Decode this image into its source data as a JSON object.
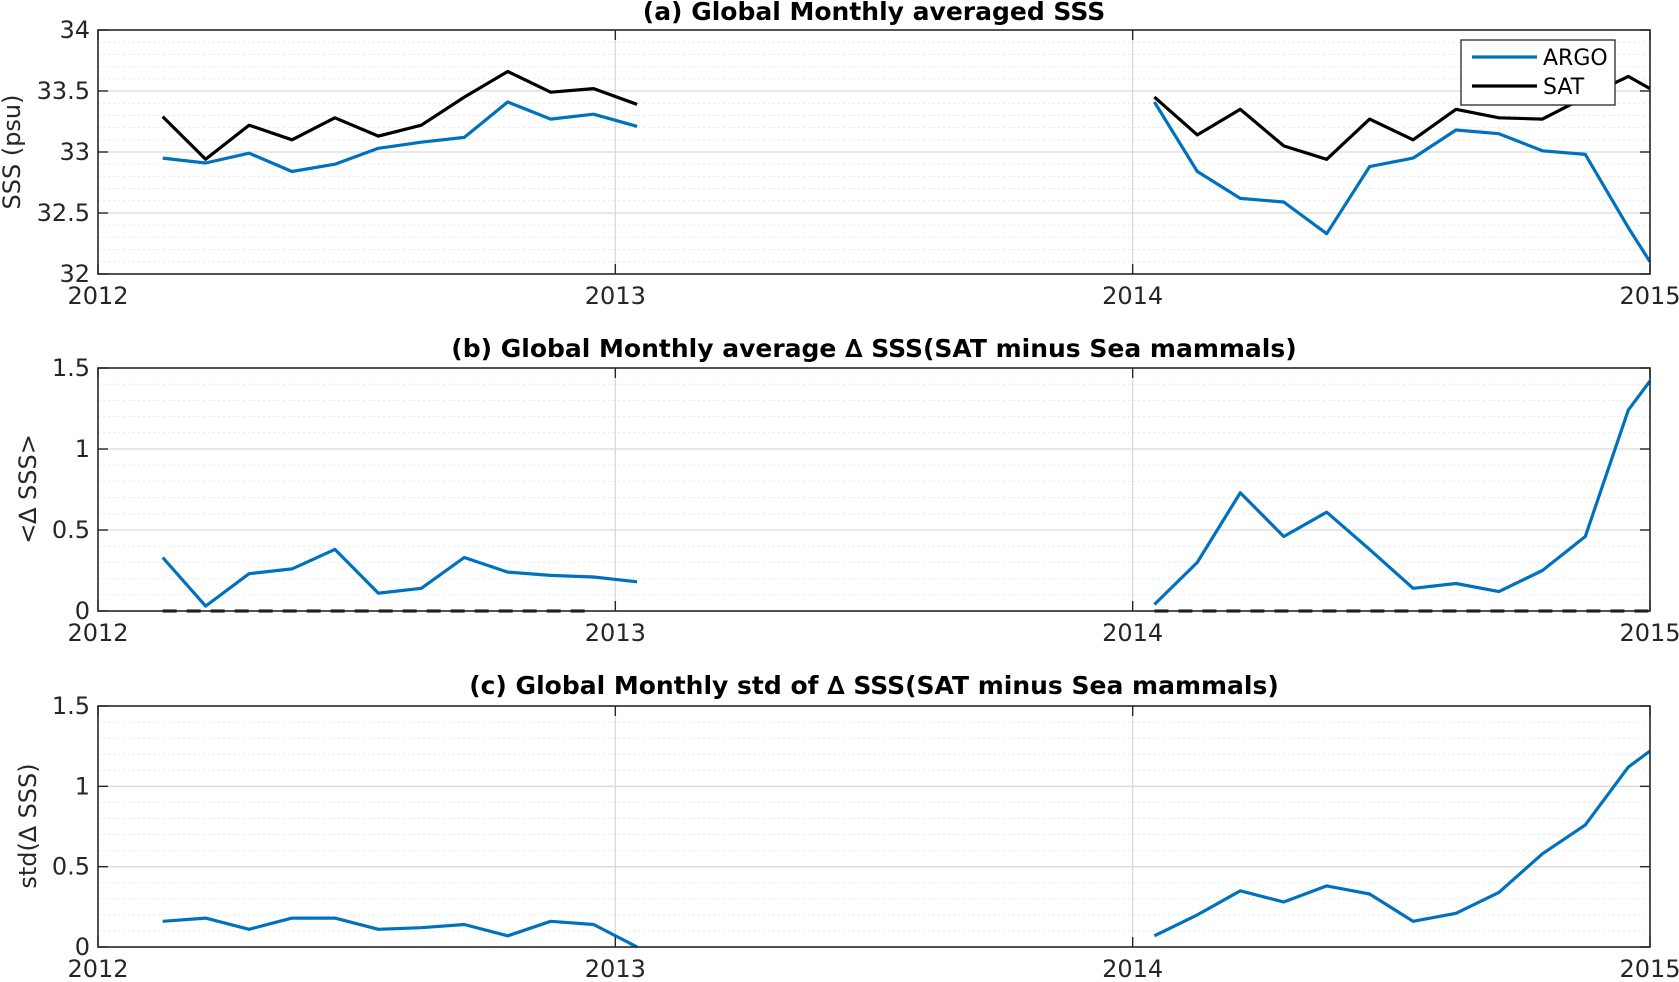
{
  "colors": {
    "argo": "#0072BD",
    "sat": "#000000",
    "zero_line": "#000000"
  },
  "chart_data": [
    {
      "type": "line",
      "title": "(a) Global Monthly averaged SSS",
      "ylabel": "SSS (psu)",
      "xlim": [
        2012,
        2015
      ],
      "ylim": [
        32,
        34
      ],
      "xticks": [
        2012,
        2013,
        2014,
        2015
      ],
      "xtick_labels": [
        "2012",
        "2013",
        "2014",
        "2015"
      ],
      "yticks": [
        32,
        32.5,
        33,
        33.5,
        34
      ],
      "ytick_labels": [
        "32",
        "32.5",
        "33",
        "33.5",
        "34"
      ],
      "minor_y_step": 0.1,
      "grid": true,
      "legend": {
        "placement": "top-right",
        "entries": [
          "ARGO",
          "SAT"
        ]
      },
      "series": [
        {
          "name": "ARGO",
          "color": "#0072BD",
          "segments": [
            {
              "x": [
                2012.125,
                2012.208,
                2012.292,
                2012.375,
                2012.458,
                2012.542,
                2012.625,
                2012.708,
                2012.792,
                2012.875,
                2012.958,
                2013.042
              ],
              "y": [
                32.95,
                32.91,
                32.99,
                32.84,
                32.9,
                33.03,
                33.08,
                33.12,
                33.41,
                33.27,
                33.31,
                33.21
              ]
            },
            {
              "x": [
                2014.042,
                2014.125,
                2014.208,
                2014.292,
                2014.375,
                2014.458,
                2014.542,
                2014.625,
                2014.708,
                2014.792,
                2014.875,
                2014.958,
                2015.0
              ],
              "y": [
                33.41,
                32.84,
                32.62,
                32.59,
                32.33,
                32.88,
                32.95,
                33.18,
                33.15,
                33.01,
                32.98,
                32.38,
                32.1
              ]
            }
          ]
        },
        {
          "name": "SAT",
          "color": "#000000",
          "segments": [
            {
              "x": [
                2012.125,
                2012.208,
                2012.292,
                2012.375,
                2012.458,
                2012.542,
                2012.625,
                2012.708,
                2012.792,
                2012.875,
                2012.958,
                2013.042
              ],
              "y": [
                33.29,
                32.94,
                33.22,
                33.1,
                33.28,
                33.13,
                33.22,
                33.45,
                33.66,
                33.49,
                33.52,
                33.39
              ]
            },
            {
              "x": [
                2014.042,
                2014.125,
                2014.208,
                2014.292,
                2014.375,
                2014.458,
                2014.542,
                2014.625,
                2014.708,
                2014.792,
                2014.875,
                2014.958,
                2015.0
              ],
              "y": [
                33.45,
                33.14,
                33.35,
                33.05,
                32.94,
                33.27,
                33.1,
                33.35,
                33.28,
                33.27,
                33.45,
                33.62,
                33.52
              ]
            }
          ]
        }
      ]
    },
    {
      "type": "line",
      "title": "(b) Global Monthly average ∆ SSS(SAT minus Sea mammals)",
      "ylabel": "<∆ SSS>",
      "xlim": [
        2012,
        2015
      ],
      "ylim": [
        0,
        1.5
      ],
      "xticks": [
        2012,
        2013,
        2014,
        2015
      ],
      "xtick_labels": [
        "2012",
        "2013",
        "2014",
        "2015"
      ],
      "yticks": [
        0,
        0.5,
        1,
        1.5
      ],
      "ytick_labels": [
        "0",
        "0.5",
        "1",
        "1.5"
      ],
      "minor_y_step": 0.1,
      "grid": true,
      "zero_line": {
        "style": "dashed",
        "segments": [
          [
            2012.125,
            2012.958
          ],
          [
            2014.042,
            2015.0
          ]
        ]
      },
      "series": [
        {
          "color": "#0072BD",
          "segments": [
            {
              "x": [
                2012.125,
                2012.208,
                2012.292,
                2012.375,
                2012.458,
                2012.542,
                2012.625,
                2012.708,
                2012.792,
                2012.875,
                2012.958,
                2013.042
              ],
              "y": [
                0.33,
                0.03,
                0.23,
                0.26,
                0.38,
                0.11,
                0.14,
                0.33,
                0.24,
                0.22,
                0.21,
                0.18
              ]
            },
            {
              "x": [
                2014.042,
                2014.125,
                2014.208,
                2014.292,
                2014.375,
                2014.458,
                2014.542,
                2014.625,
                2014.708,
                2014.792,
                2014.875,
                2014.958,
                2015.0
              ],
              "y": [
                0.04,
                0.3,
                0.73,
                0.46,
                0.61,
                0.38,
                0.14,
                0.17,
                0.12,
                0.25,
                0.46,
                1.24,
                1.42
              ]
            }
          ]
        }
      ]
    },
    {
      "type": "line",
      "title": "(c) Global Monthly std of ∆ SSS(SAT minus Sea mammals)",
      "ylabel": "std(∆ SSS)",
      "xlim": [
        2012,
        2015
      ],
      "ylim": [
        0,
        1.5
      ],
      "xticks": [
        2012,
        2013,
        2014,
        2015
      ],
      "xtick_labels": [
        "2012",
        "2013",
        "2014",
        "2015"
      ],
      "yticks": [
        0,
        0.5,
        1,
        1.5
      ],
      "ytick_labels": [
        "0",
        "0.5",
        "1",
        "1.5"
      ],
      "minor_y_step": 0.1,
      "grid": true,
      "series": [
        {
          "color": "#0072BD",
          "segments": [
            {
              "x": [
                2012.125,
                2012.208,
                2012.292,
                2012.375,
                2012.458,
                2012.542,
                2012.625,
                2012.708,
                2012.792,
                2012.875,
                2012.958,
                2013.042
              ],
              "y": [
                0.16,
                0.18,
                0.11,
                0.18,
                0.18,
                0.11,
                0.12,
                0.14,
                0.07,
                0.16,
                0.14,
                0.0
              ]
            },
            {
              "x": [
                2014.042,
                2014.125,
                2014.208,
                2014.292,
                2014.375,
                2014.458,
                2014.542,
                2014.625,
                2014.708,
                2014.792,
                2014.875,
                2014.958,
                2015.0
              ],
              "y": [
                0.07,
                0.2,
                0.35,
                0.28,
                0.38,
                0.33,
                0.16,
                0.21,
                0.34,
                0.58,
                0.76,
                1.12,
                1.22
              ]
            }
          ]
        }
      ]
    }
  ]
}
